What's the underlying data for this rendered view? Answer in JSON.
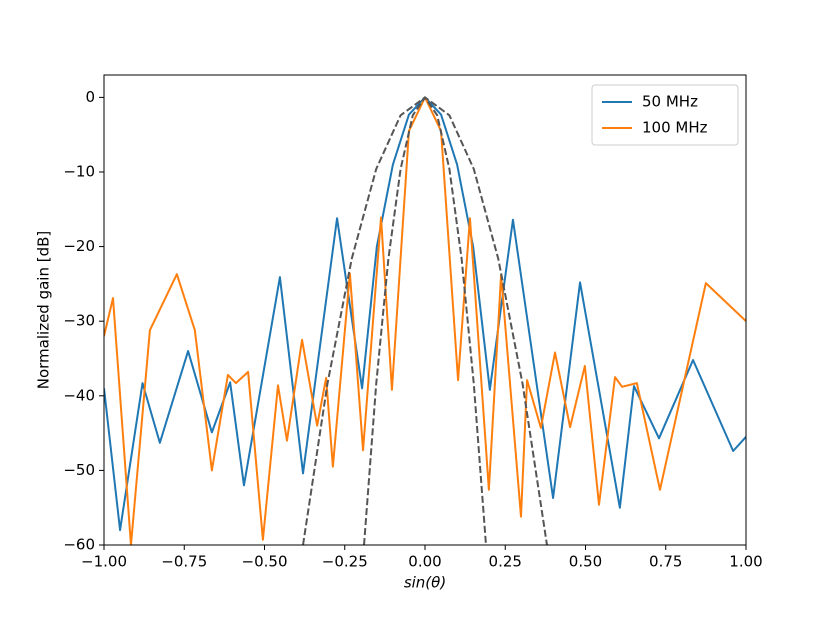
{
  "chart_data": {
    "type": "line",
    "xlabel": "sin(θ)",
    "ylabel": "Normalized gain [dB]",
    "xlim": [
      -1,
      1
    ],
    "ylim": [
      -60,
      3
    ],
    "xticks": [
      {
        "value": -1,
        "label": "−1.00"
      },
      {
        "value": -0.75,
        "label": "−0.75"
      },
      {
        "value": -0.5,
        "label": "−0.50"
      },
      {
        "value": -0.25,
        "label": "−0.25"
      },
      {
        "value": 0,
        "label": "0.00"
      },
      {
        "value": 0.25,
        "label": "0.25"
      },
      {
        "value": 0.5,
        "label": "0.50"
      },
      {
        "value": 0.75,
        "label": "0.75"
      },
      {
        "value": 1,
        "label": "1.00"
      }
    ],
    "yticks": [
      0,
      {
        "value": -10,
        "label": "−10"
      },
      {
        "value": -20,
        "label": "−20"
      },
      {
        "value": -30,
        "label": "−30"
      },
      {
        "value": -40,
        "label": "−40"
      },
      {
        "value": -50,
        "label": "−50"
      },
      {
        "value": -60,
        "label": "−60"
      }
    ],
    "legend": "upper right",
    "series": [
      {
        "name": "50 MHz",
        "color": "#1f77b4",
        "x": [
          -1,
          -0.95,
          -0.88,
          -0.826,
          -0.738,
          -0.664,
          -0.607,
          -0.564,
          -0.452,
          -0.38,
          -0.274,
          -0.196,
          -0.15,
          -0.1,
          -0.05,
          0,
          0.05,
          0.1,
          0.15,
          0.202,
          0.274,
          0.399,
          0.483,
          0.607,
          0.651,
          0.729,
          0.835,
          0.96,
          1
        ],
        "values": [
          -39,
          -58,
          -38.3,
          -46.3,
          -34,
          -44.9,
          -38.2,
          -52,
          -24.1,
          -50.4,
          -16.2,
          -39,
          -20,
          -9,
          -2.3,
          0,
          -2.3,
          -9,
          -20,
          -39.2,
          -16.4,
          -53.7,
          -24.8,
          -55,
          -38.7,
          -45.7,
          -35.2,
          -47.4,
          -45.5
        ]
      },
      {
        "name": "100 MHz",
        "color": "#ff7f0e",
        "x": [
          -1,
          -0.972,
          -0.916,
          -0.857,
          -0.773,
          -0.717,
          -0.664,
          -0.614,
          -0.589,
          -0.551,
          -0.505,
          -0.458,
          -0.43,
          -0.383,
          -0.336,
          -0.308,
          -0.287,
          -0.234,
          -0.193,
          -0.137,
          -0.103,
          -0.05,
          0,
          0.05,
          0.103,
          0.14,
          0.199,
          0.237,
          0.299,
          0.318,
          0.361,
          0.405,
          0.452,
          0.498,
          0.542,
          0.592,
          0.614,
          0.66,
          0.732,
          0.875,
          1
        ],
        "values": [
          -32,
          -26.9,
          -60,
          -31.2,
          -23.7,
          -31.2,
          -50,
          -37.2,
          -38.3,
          -36.8,
          -59.3,
          -38.6,
          -46,
          -32.5,
          -44,
          -37.6,
          -49.5,
          -23.6,
          -47.3,
          -16.1,
          -39.2,
          -4.5,
          0,
          -4.5,
          -37.9,
          -16.2,
          -52.6,
          -23.8,
          -56.2,
          -37.9,
          -44.3,
          -34.2,
          -44.2,
          -36,
          -54.6,
          -37.5,
          -38.8,
          -38.3,
          -52.6,
          -24.9,
          -30
        ]
      },
      {
        "color": "#555555",
        "linestyle": "dashed",
        "x": [
          -0.38,
          -0.304,
          -0.228,
          -0.152,
          -0.076,
          0,
          0.076,
          0.152,
          0.228,
          0.304,
          0.38
        ],
        "values": [
          -60,
          -38.4,
          -21.6,
          -9.6,
          -2.4,
          0,
          -2.4,
          -9.6,
          -21.6,
          -38.4,
          -60
        ]
      },
      {
        "color": "#555555",
        "linestyle": "dashed",
        "x": [
          -0.19,
          -0.152,
          -0.114,
          -0.076,
          -0.038,
          0,
          0.038,
          0.076,
          0.114,
          0.152,
          0.19
        ],
        "values": [
          -60,
          -38.4,
          -21.6,
          -9.6,
          -2.4,
          0,
          -2.4,
          -9.6,
          -21.6,
          -38.4,
          -60
        ]
      }
    ]
  }
}
